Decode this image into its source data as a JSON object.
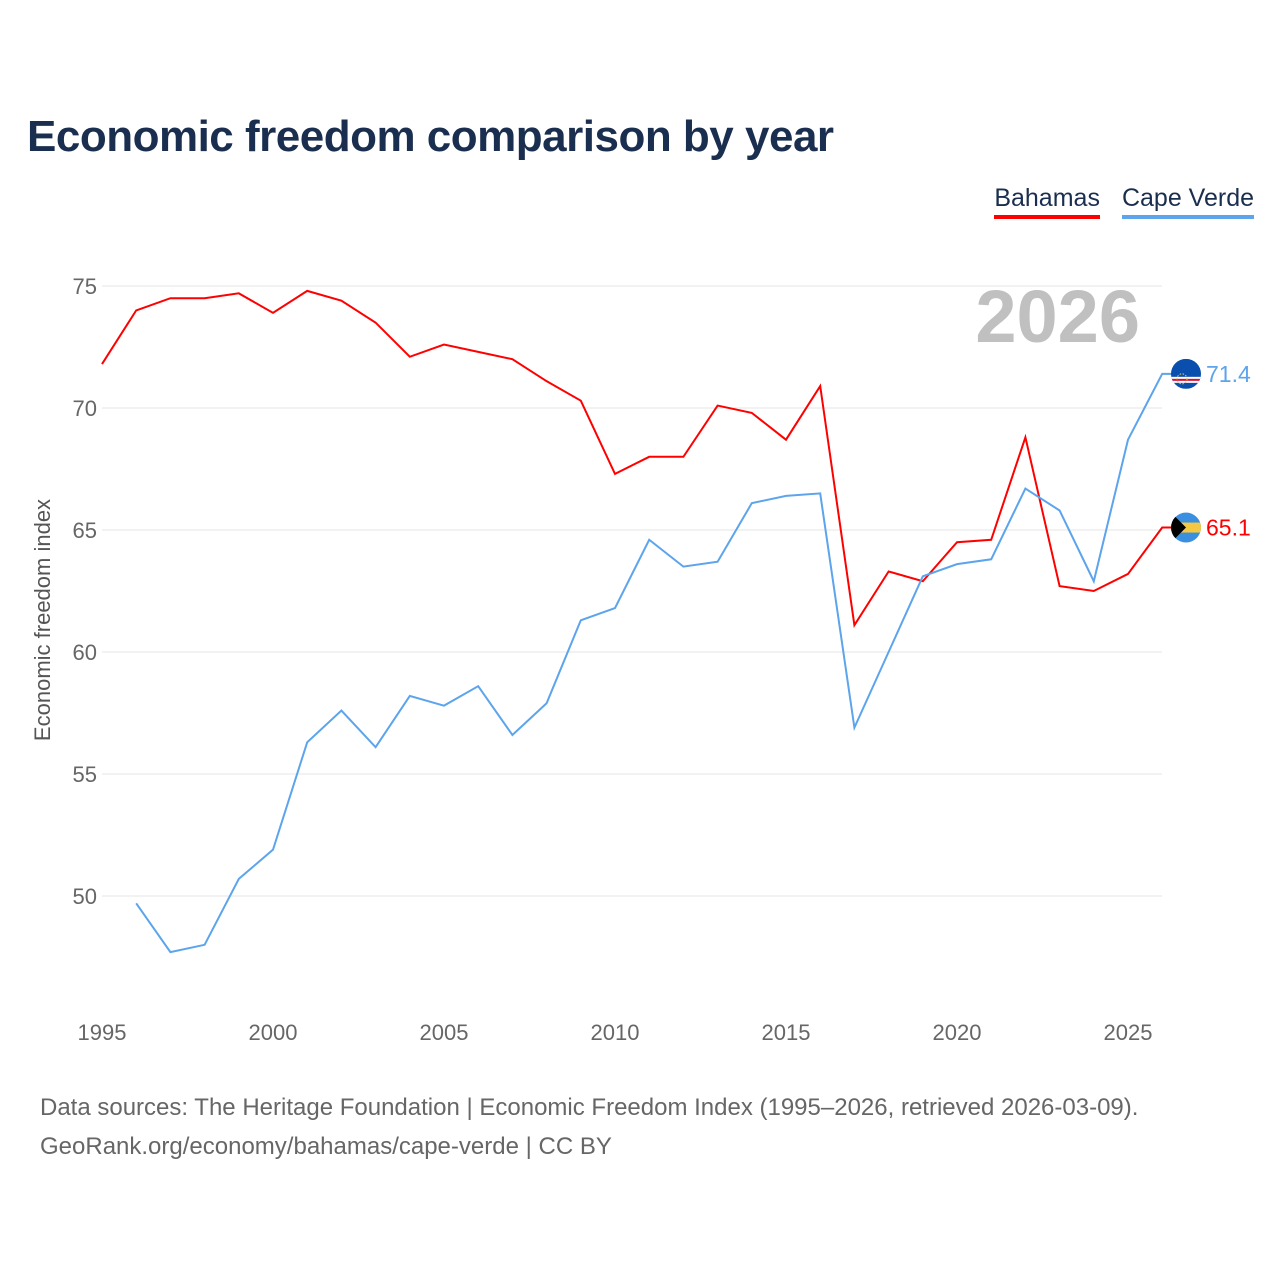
{
  "title": "Economic freedom comparison by year",
  "year_watermark": "2026",
  "source_line1": "Data sources: The Heritage Foundation | Economic Freedom Index (1995–2026, retrieved 2026-03-09).",
  "source_line2": "GeoRank.org/economy/bahamas/cape-verde | CC BY",
  "chart_data": {
    "type": "line",
    "title": "Economic freedom comparison by year",
    "xlabel": "",
    "ylabel": "Economic freedom index",
    "xlim": [
      1995,
      2026
    ],
    "ylim": [
      45.5,
      77
    ],
    "x_ticks": [
      1995,
      2000,
      2005,
      2010,
      2015,
      2020,
      2025
    ],
    "y_ticks": [
      50,
      55,
      60,
      65,
      70,
      75
    ],
    "grid": true,
    "legend_placement": "top-right",
    "series": [
      {
        "name": "Bahamas",
        "color": "#ff0000",
        "end_label": "65.1",
        "x": [
          1995,
          1996,
          1997,
          1998,
          1999,
          2000,
          2001,
          2002,
          2003,
          2004,
          2005,
          2006,
          2007,
          2008,
          2009,
          2010,
          2011,
          2012,
          2013,
          2014,
          2015,
          2016,
          2017,
          2018,
          2019,
          2020,
          2021,
          2022,
          2023,
          2024,
          2025,
          2026
        ],
        "values": [
          71.8,
          74.0,
          74.5,
          74.5,
          74.7,
          73.9,
          74.8,
          74.4,
          73.5,
          72.1,
          72.6,
          72.3,
          72.0,
          71.1,
          70.3,
          67.3,
          68.0,
          68.0,
          70.1,
          69.8,
          68.7,
          70.9,
          61.1,
          63.3,
          62.9,
          64.5,
          64.6,
          68.8,
          62.7,
          62.5,
          63.2,
          65.1
        ]
      },
      {
        "name": "Cape Verde",
        "color": "#5ca4ec",
        "end_label": "71.4",
        "x": [
          1996,
          1997,
          1998,
          1999,
          2000,
          2001,
          2002,
          2003,
          2004,
          2005,
          2006,
          2007,
          2008,
          2009,
          2010,
          2011,
          2012,
          2013,
          2014,
          2015,
          2016,
          2017,
          2018,
          2019,
          2020,
          2021,
          2022,
          2023,
          2024,
          2025,
          2026
        ],
        "values": [
          49.7,
          47.7,
          48.0,
          50.7,
          51.9,
          56.3,
          57.6,
          56.1,
          58.2,
          57.8,
          58.6,
          56.6,
          57.9,
          61.3,
          61.8,
          64.6,
          63.5,
          63.7,
          66.1,
          66.4,
          66.5,
          56.9,
          60.0,
          63.1,
          63.6,
          63.8,
          66.7,
          65.8,
          62.9,
          68.7,
          71.4
        ]
      }
    ]
  }
}
